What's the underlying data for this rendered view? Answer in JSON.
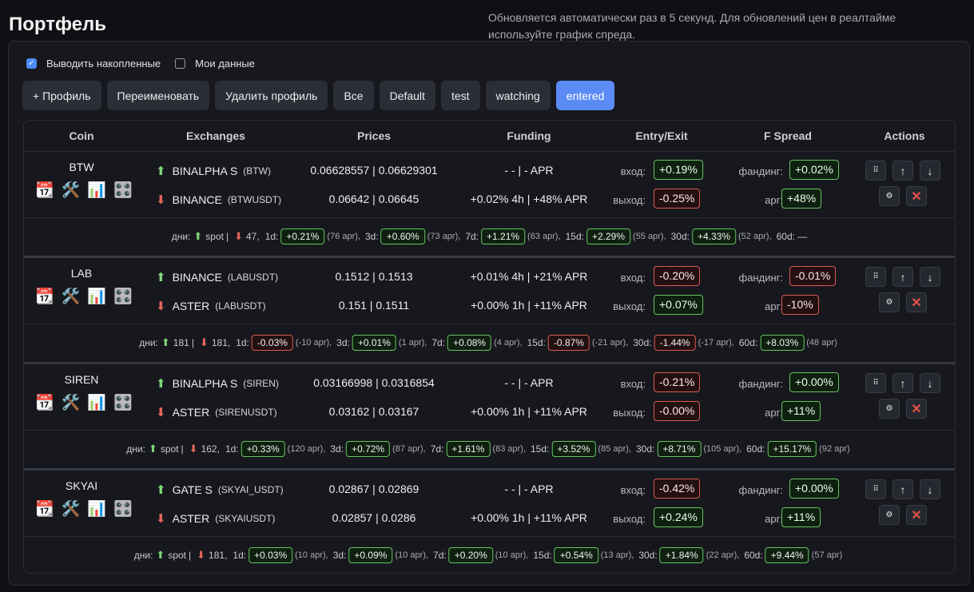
{
  "page": {
    "title": "Портфель",
    "note": "Обновляется автоматически раз в 5 секунд. Для обновлений цен в реалтайме используйте график спреда."
  },
  "options": {
    "cumulative_label": "Выводить накопленные",
    "cumulative_checked": true,
    "my_data_label": "Мои данные",
    "my_data_checked": false
  },
  "toolbar": {
    "buttons": [
      "+ Профиль",
      "Переименовать",
      "Удалить профиль",
      "Все",
      "Default",
      "test",
      "watching",
      "entered"
    ],
    "active": "entered"
  },
  "table": {
    "headers": [
      "Coin",
      "Exchanges",
      "Prices",
      "Funding",
      "Entry/Exit",
      "F Spread",
      "Actions"
    ],
    "labels": {
      "entry": "вход:",
      "exit": "выход:",
      "funding": "фандинг:",
      "arb": "арг:"
    },
    "rows": [
      {
        "coin": "BTW",
        "ex1": {
          "name": "BINALPHA S",
          "sym": "(BTW)",
          "prices": "0.06628557 | 0.06629301",
          "funding": "- - | - APR"
        },
        "ex2": {
          "name": "BINANCE",
          "sym": "(BTWUSDT)",
          "prices": "0.06642 | 0.06645",
          "funding": "+0.02% 4h | +48% APR"
        },
        "entry": "+0.19%",
        "exit": "-0.25%",
        "f_funding": "+0.02%",
        "f_arb": "+48%",
        "days": {
          "prefix": "дни:",
          "left": "spot",
          "sep": "|",
          "right": "47,",
          "periods": [
            {
              "label": "1d:",
              "value": "+0.21%",
              "apr": "(76 apr),",
              "sign": "g"
            },
            {
              "label": "3d:",
              "value": "+0.60%",
              "apr": "(73 apr),",
              "sign": "g"
            },
            {
              "label": "7d:",
              "value": "+1.21%",
              "apr": "(63 apr),",
              "sign": "g"
            },
            {
              "label": "15d:",
              "value": "+2.29%",
              "apr": "(55 apr),",
              "sign": "g"
            },
            {
              "label": "30d:",
              "value": "+4.33%",
              "apr": "(52 apr),",
              "sign": "g"
            }
          ],
          "tail": "60d: —"
        }
      },
      {
        "coin": "LAB",
        "ex1": {
          "name": "BINANCE",
          "sym": "(LABUSDT)",
          "prices": "0.1512 | 0.1513",
          "funding": "+0.01% 4h | +21% APR"
        },
        "ex2": {
          "name": "ASTER",
          "sym": "(LABUSDT)",
          "prices": "0.151 | 0.1511",
          "funding": "+0.00% 1h | +11% APR"
        },
        "entry": "-0.20%",
        "exit": "+0.07%",
        "f_funding": "-0.01%",
        "f_arb": "-10%",
        "days": {
          "prefix": "дни:",
          "left": "181",
          "sep": "|",
          "right": "181,",
          "periods": [
            {
              "label": "1d:",
              "value": "-0.03%",
              "apr": "(-10 apr),",
              "sign": "r"
            },
            {
              "label": "3d:",
              "value": "+0.01%",
              "apr": "(1 apr),",
              "sign": "g"
            },
            {
              "label": "7d:",
              "value": "+0.08%",
              "apr": "(4 apr),",
              "sign": "g"
            },
            {
              "label": "15d:",
              "value": "-0.87%",
              "apr": "(-21 apr),",
              "sign": "r"
            },
            {
              "label": "30d:",
              "value": "-1.44%",
              "apr": "(-17 apr),",
              "sign": "r"
            },
            {
              "label": "60d:",
              "value": "+8.03%",
              "apr": "(48 apr)",
              "sign": "g"
            }
          ],
          "tail": ""
        }
      },
      {
        "coin": "SIREN",
        "ex1": {
          "name": "BINALPHA S",
          "sym": "(SIREN)",
          "prices": "0.03166998 | 0.0316854",
          "funding": "- - | - APR"
        },
        "ex2": {
          "name": "ASTER",
          "sym": "(SIRENUSDT)",
          "prices": "0.03162 | 0.03167",
          "funding": "+0.00% 1h | +11% APR"
        },
        "entry": "-0.21%",
        "exit": "-0.00%",
        "f_funding": "+0.00%",
        "f_arb": "+11%",
        "days": {
          "prefix": "дни:",
          "left": "spot",
          "sep": "|",
          "right": "162,",
          "periods": [
            {
              "label": "1d:",
              "value": "+0.33%",
              "apr": "(120 apr),",
              "sign": "g"
            },
            {
              "label": "3d:",
              "value": "+0.72%",
              "apr": "(87 apr),",
              "sign": "g"
            },
            {
              "label": "7d:",
              "value": "+1.61%",
              "apr": "(83 apr),",
              "sign": "g"
            },
            {
              "label": "15d:",
              "value": "+3.52%",
              "apr": "(85 apr),",
              "sign": "g"
            },
            {
              "label": "30d:",
              "value": "+8.71%",
              "apr": "(105 apr),",
              "sign": "g"
            },
            {
              "label": "60d:",
              "value": "+15.17%",
              "apr": "(92 apr)",
              "sign": "g"
            }
          ],
          "tail": ""
        }
      },
      {
        "coin": "SKYAI",
        "ex1": {
          "name": "GATE S",
          "sym": "(SKYAI_USDT)",
          "prices": "0.02867 | 0.02869",
          "funding": "- - | - APR"
        },
        "ex2": {
          "name": "ASTER",
          "sym": "(SKYAIUSDT)",
          "prices": "0.02857 | 0.0286",
          "funding": "+0.00% 1h | +11% APR"
        },
        "entry": "-0.42%",
        "exit": "+0.24%",
        "f_funding": "+0.00%",
        "f_arb": "+11%",
        "days": {
          "prefix": "дни:",
          "left": "spot",
          "sep": "|",
          "right": "181,",
          "periods": [
            {
              "label": "1d:",
              "value": "+0.03%",
              "apr": "(10 apr),",
              "sign": "g"
            },
            {
              "label": "3d:",
              "value": "+0.09%",
              "apr": "(10 apr),",
              "sign": "g"
            },
            {
              "label": "7d:",
              "value": "+0.20%",
              "apr": "(10 apr),",
              "sign": "g"
            },
            {
              "label": "15d:",
              "value": "+0.54%",
              "apr": "(13 apr),",
              "sign": "g"
            },
            {
              "label": "30d:",
              "value": "+1.84%",
              "apr": "(22 apr),",
              "sign": "g"
            },
            {
              "label": "60d:",
              "value": "+9.44%",
              "apr": "(57 apr)",
              "sign": "g"
            }
          ],
          "tail": ""
        }
      }
    ]
  },
  "icons": {
    "calendar": "calendar-icon",
    "tools": "tools-icon",
    "chart": "bar-chart-icon",
    "dice": "dice-icon",
    "drag": "drag-handle-icon",
    "up": "arrow-up-icon",
    "down": "arrow-down-icon",
    "settings": "settings-icon",
    "delete": "close-icon"
  },
  "colors": {
    "accent": "#5b8cf6",
    "positive": "#67c461",
    "negative": "#d95b53"
  }
}
